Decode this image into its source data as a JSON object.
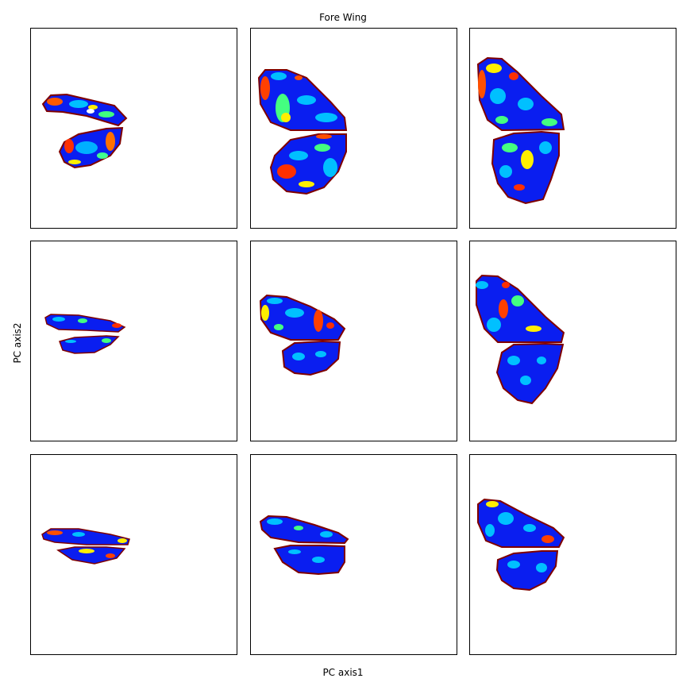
{
  "figure": {
    "title": "Fore Wing",
    "xlabel": "PC axis1",
    "ylabel": "PC axis2"
  },
  "colormap": {
    "name": "jet",
    "stops": [
      "#00007f",
      "#0000ff",
      "#00bfff",
      "#44ff80",
      "#ffee00",
      "#ff4000",
      "#7f0000"
    ]
  },
  "panels": [
    {
      "row": 1,
      "col": 1
    },
    {
      "row": 1,
      "col": 2
    },
    {
      "row": 1,
      "col": 3
    },
    {
      "row": 2,
      "col": 1
    },
    {
      "row": 2,
      "col": 2
    },
    {
      "row": 2,
      "col": 3
    },
    {
      "row": 3,
      "col": 1
    },
    {
      "row": 3,
      "col": 2
    },
    {
      "row": 3,
      "col": 3
    }
  ]
}
